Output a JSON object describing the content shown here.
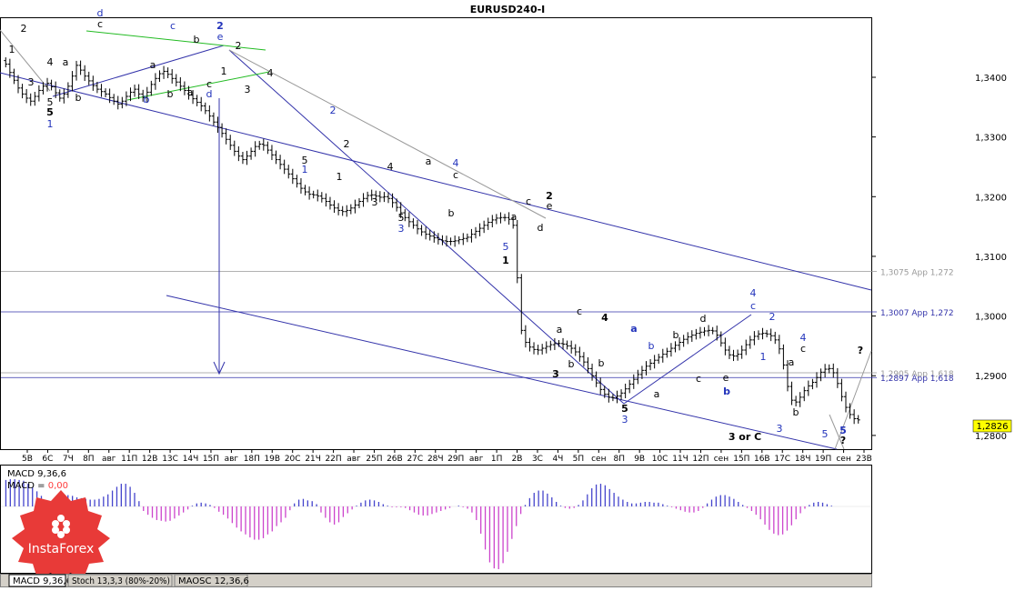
{
  "window": {
    "title": "EURUSD240-I"
  },
  "colors": {
    "candle": "#000000",
    "channel": "#3333aa",
    "green": "#22bb22",
    "gray": "#999999",
    "label_blue": "#2233bb",
    "macd_pos": "#4444cc",
    "macd_neg": "#cc44cc",
    "current_price_bg": "#ffff00"
  },
  "chart_data": {
    "type": "candlestick",
    "symbol": "EURUSD240-I",
    "price_labels": [
      "1,3400",
      "1,3300",
      "1,3200",
      "1,3100",
      "1,3000",
      "1,2900",
      "1,2800"
    ],
    "price_values": [
      1.34,
      1.33,
      1.32,
      1.31,
      1.3,
      1.29,
      1.28
    ],
    "ylim": [
      1.2777,
      1.3499
    ],
    "current_price": "1,2826",
    "x_labels": [
      "5В",
      "6С",
      "7Ч",
      "8П",
      "авг",
      "11П",
      "12В",
      "13С",
      "14Ч",
      "15П",
      "авг",
      "18П",
      "19В",
      "20С",
      "21Ч",
      "22П",
      "авг",
      "25П",
      "26В",
      "27С",
      "28Ч",
      "29П",
      "авг",
      "1П",
      "2В",
      "3С",
      "4Ч",
      "5П",
      "сен",
      "8П",
      "9В",
      "10С",
      "11Ч",
      "12П",
      "сен",
      "15П",
      "16В",
      "17С",
      "18Ч",
      "19П",
      "сен",
      "23В"
    ],
    "levels": [
      {
        "name": "1,3075 App 1,272",
        "value": 1.3075,
        "color": "#999999"
      },
      {
        "name": "1,3007 App 1,272",
        "value": 1.3007,
        "color": "#3333aa"
      },
      {
        "name": "1,2905 App 1,618",
        "value": 1.2905,
        "color": "#999999"
      },
      {
        "name": "1,2897 App 1,618",
        "value": 1.2897,
        "color": "#3333aa"
      }
    ],
    "close": [
      1.3422,
      1.3408,
      1.3395,
      1.3382,
      1.3372,
      1.3365,
      1.336,
      1.3368,
      1.3378,
      1.3385,
      1.339,
      1.3384,
      1.3374,
      1.3365,
      1.3372,
      1.3385,
      1.3402,
      1.342,
      1.3412,
      1.3402,
      1.3394,
      1.3386,
      1.338,
      1.3376,
      1.3372,
      1.3366,
      1.336,
      1.3355,
      1.336,
      1.3368,
      1.3375,
      1.338,
      1.3372,
      1.3366,
      1.3375,
      1.3388,
      1.3398,
      1.3406,
      1.341,
      1.3405,
      1.3398,
      1.3392,
      1.3385,
      1.3378,
      1.337,
      1.3364,
      1.3358,
      1.3352,
      1.3344,
      1.3335,
      1.3325,
      1.3316,
      1.3306,
      1.3296,
      1.3286,
      1.3276,
      1.3268,
      1.3262,
      1.3268,
      1.3276,
      1.3284,
      1.3288,
      1.3286,
      1.3278,
      1.327,
      1.3262,
      1.3254,
      1.3246,
      1.3238,
      1.323,
      1.3222,
      1.3214,
      1.3208,
      1.3204,
      1.3203,
      1.3201,
      1.3197,
      1.3192,
      1.3186,
      1.3181,
      1.3177,
      1.3175,
      1.3177,
      1.3181,
      1.3186,
      1.3192,
      1.3197,
      1.3202,
      1.3203,
      1.3201,
      1.3199,
      1.32,
      1.3197,
      1.319,
      1.3182,
      1.3173,
      1.3165,
      1.3158,
      1.3152,
      1.3146,
      1.3141,
      1.3137,
      1.3134,
      1.3131,
      1.3128,
      1.3126,
      1.3125,
      1.3125,
      1.3126,
      1.3128,
      1.313,
      1.3132,
      1.3137,
      1.3142,
      1.3147,
      1.3152,
      1.3157,
      1.3161,
      1.3164,
      1.3165,
      1.3165,
      1.3162,
      1.3152,
      1.3064,
      1.2976,
      1.2956,
      1.2948,
      1.2944,
      1.2943,
      1.2946,
      1.2949,
      1.2952,
      1.2954,
      1.2954,
      1.2953,
      1.295,
      1.2946,
      1.294,
      1.2932,
      1.2923,
      1.2912,
      1.29,
      1.2888,
      1.2877,
      1.2869,
      1.2864,
      1.2863,
      1.2866,
      1.2871,
      1.2878,
      1.2886,
      1.2894,
      1.2902,
      1.2909,
      1.2916,
      1.2921,
      1.2926,
      1.2931,
      1.2936,
      1.2941,
      1.2946,
      1.2951,
      1.2956,
      1.2961,
      1.2965,
      1.2968,
      1.2971,
      1.2973,
      1.2975,
      1.2976,
      1.2975,
      1.2968,
      1.2955,
      1.2943,
      1.2935,
      1.2933,
      1.2936,
      1.2943,
      1.2952,
      1.296,
      1.2966,
      1.297,
      1.2971,
      1.297,
      1.2967,
      1.296,
      1.2945,
      1.2918,
      1.2882,
      1.2859,
      1.2856,
      1.2864,
      1.2875,
      1.2883,
      1.2889,
      1.2897,
      1.2906,
      1.2911,
      1.2912,
      1.2905,
      1.2887,
      1.2865,
      1.2847,
      1.2835,
      1.2828,
      1.2826
    ]
  },
  "annotations": [
    {
      "t": "2",
      "c": "b",
      "x": 26,
      "y": 35
    },
    {
      "t": "1",
      "c": "b",
      "x": 13,
      "y": 58
    },
    {
      "t": "3",
      "c": "b",
      "x": 34,
      "y": 94
    },
    {
      "t": "4",
      "c": "b",
      "x": 55,
      "y": 72
    },
    {
      "t": "5",
      "c": "b",
      "x": 55,
      "y": 116
    },
    {
      "t": "5",
      "c": "b",
      "x": 55,
      "y": 127,
      "bold": true
    },
    {
      "t": "1",
      "c": "u",
      "x": 55,
      "y": 140
    },
    {
      "t": "a",
      "c": "b",
      "x": 72,
      "y": 72
    },
    {
      "t": "b",
      "c": "b",
      "x": 86,
      "y": 111
    },
    {
      "t": "d",
      "c": "u",
      "x": 110,
      "y": 18
    },
    {
      "t": "c",
      "c": "b",
      "x": 110,
      "y": 30
    },
    {
      "t": "c",
      "c": "u",
      "x": 190,
      "y": 32
    },
    {
      "t": "b",
      "c": "b",
      "x": 216,
      "y": 47
    },
    {
      "t": "2",
      "c": "u",
      "x": 242,
      "y": 32,
      "bold": true
    },
    {
      "t": "e",
      "c": "u",
      "x": 242,
      "y": 44
    },
    {
      "t": "2",
      "c": "b",
      "x": 262,
      "y": 54
    },
    {
      "t": "1",
      "c": "b",
      "x": 246,
      "y": 82
    },
    {
      "t": "a",
      "c": "b",
      "x": 168,
      "y": 75
    },
    {
      "t": "b",
      "c": "u",
      "x": 161,
      "y": 113
    },
    {
      "t": "b",
      "c": "b",
      "x": 187,
      "y": 107
    },
    {
      "t": "a",
      "c": "b",
      "x": 209,
      "y": 105
    },
    {
      "t": "c",
      "c": "b",
      "x": 230,
      "y": 96
    },
    {
      "t": "d",
      "c": "u",
      "x": 230,
      "y": 107
    },
    {
      "t": "3",
      "c": "b",
      "x": 272,
      "y": 102
    },
    {
      "t": "4",
      "c": "b",
      "x": 297,
      "y": 84
    },
    {
      "t": "2",
      "c": "u",
      "x": 366,
      "y": 125
    },
    {
      "t": "5",
      "c": "b",
      "x": 335,
      "y": 180
    },
    {
      "t": "1",
      "c": "u",
      "x": 335,
      "y": 190
    },
    {
      "t": "2",
      "c": "b",
      "x": 381,
      "y": 162
    },
    {
      "t": "1",
      "c": "b",
      "x": 373,
      "y": 198
    },
    {
      "t": "4",
      "c": "b",
      "x": 429,
      "y": 187
    },
    {
      "t": "3",
      "c": "b",
      "x": 412,
      "y": 226
    },
    {
      "t": "5",
      "c": "b",
      "x": 441,
      "y": 243
    },
    {
      "t": "3",
      "c": "u",
      "x": 441,
      "y": 255
    },
    {
      "t": "a",
      "c": "b",
      "x": 471,
      "y": 181
    },
    {
      "t": "4",
      "c": "u",
      "x": 501,
      "y": 183
    },
    {
      "t": "c",
      "c": "b",
      "x": 501,
      "y": 196
    },
    {
      "t": "b",
      "c": "b",
      "x": 496,
      "y": 238
    },
    {
      "t": "c",
      "c": "b",
      "x": 581,
      "y": 225
    },
    {
      "t": "2",
      "c": "b",
      "x": 604,
      "y": 219,
      "bold": true
    },
    {
      "t": "e",
      "c": "b",
      "x": 604,
      "y": 230
    },
    {
      "t": "a",
      "c": "b",
      "x": 565,
      "y": 242
    },
    {
      "t": "d",
      "c": "b",
      "x": 594,
      "y": 254
    },
    {
      "t": "5",
      "c": "u",
      "x": 556,
      "y": 275
    },
    {
      "t": "1",
      "c": "b",
      "x": 556,
      "y": 290,
      "bold": true
    },
    {
      "t": "c",
      "c": "b",
      "x": 637,
      "y": 346
    },
    {
      "t": "4",
      "c": "b",
      "x": 665,
      "y": 353,
      "bold": true
    },
    {
      "t": "a",
      "c": "b",
      "x": 615,
      "y": 366
    },
    {
      "t": "b",
      "c": "b",
      "x": 628,
      "y": 404
    },
    {
      "t": "3",
      "c": "b",
      "x": 611,
      "y": 415,
      "bold": true
    },
    {
      "t": "a",
      "c": "u",
      "x": 697,
      "y": 365,
      "bold": true
    },
    {
      "t": "b",
      "c": "b",
      "x": 661,
      "y": 403
    },
    {
      "t": "b",
      "c": "u",
      "x": 716,
      "y": 384
    },
    {
      "t": "5",
      "c": "b",
      "x": 687,
      "y": 453,
      "bold": true
    },
    {
      "t": "3",
      "c": "u",
      "x": 687,
      "y": 465
    },
    {
      "t": "d",
      "c": "b",
      "x": 773,
      "y": 354
    },
    {
      "t": "b",
      "c": "b",
      "x": 743,
      "y": 372
    },
    {
      "t": "a",
      "c": "b",
      "x": 722,
      "y": 437
    },
    {
      "t": "c",
      "c": "b",
      "x": 768,
      "y": 420
    },
    {
      "t": "e",
      "c": "b",
      "x": 798,
      "y": 419
    },
    {
      "t": "b",
      "c": "u",
      "x": 799,
      "y": 434,
      "bold": true
    },
    {
      "t": "4",
      "c": "u",
      "x": 828,
      "y": 326
    },
    {
      "t": "c",
      "c": "u",
      "x": 828,
      "y": 340
    },
    {
      "t": "2",
      "c": "u",
      "x": 849,
      "y": 352
    },
    {
      "t": "1",
      "c": "u",
      "x": 839,
      "y": 396
    },
    {
      "t": "4",
      "c": "u",
      "x": 883,
      "y": 375
    },
    {
      "t": "c",
      "c": "b",
      "x": 883,
      "y": 387
    },
    {
      "t": "a",
      "c": "b",
      "x": 870,
      "y": 402
    },
    {
      "t": "b",
      "c": "b",
      "x": 875,
      "y": 457
    },
    {
      "t": "3",
      "c": "u",
      "x": 857,
      "y": 475
    },
    {
      "t": "5",
      "c": "u",
      "x": 907,
      "y": 481
    },
    {
      "t": "3 or C",
      "c": "b",
      "x": 819,
      "y": 484,
      "bold": true
    },
    {
      "t": "5",
      "c": "u",
      "x": 927,
      "y": 477,
      "bold": true
    },
    {
      "t": "?",
      "c": "b",
      "x": 927,
      "y": 488,
      "bold": true
    },
    {
      "t": "?",
      "c": "b",
      "x": 946,
      "y": 389,
      "bold": true
    }
  ],
  "indicator": {
    "macd_label": "MACD 9,36,6",
    "macd_value_prefix": "MACD = ",
    "macd_value": "0,00",
    "macd_hist": [
      0.0035,
      0.0036,
      0.0036,
      0.0035,
      0.0034,
      0.003,
      0.0025,
      0.002,
      0.0014,
      0.0008,
      0.0003,
      0.0005,
      0.001,
      0.0013,
      0.0015,
      0.0014,
      0.0012,
      0.0011,
      0.001,
      0.0009,
      0.0009,
      0.001,
      0.0013,
      0.0016,
      0.0021,
      0.0026,
      0.003,
      0.003,
      0.0026,
      0.0018,
      0.0007,
      -0.0006,
      -0.0011,
      -0.0015,
      -0.0018,
      -0.0019,
      -0.002,
      -0.0019,
      -0.0016,
      -0.0012,
      -0.0008,
      -0.0004,
      0.0001,
      0.0004,
      0.0005,
      0.0004,
      0.0002,
      -0.0002,
      -0.0007,
      -0.0011,
      -0.0016,
      -0.0022,
      -0.0028,
      -0.0033,
      -0.0037,
      -0.0041,
      -0.0044,
      -0.0044,
      -0.0042,
      -0.0037,
      -0.0033,
      -0.0026,
      -0.0021,
      -0.0015,
      -0.0005,
      0.0004,
      0.0009,
      0.001,
      0.0008,
      0.0007,
      0.0003,
      -0.0008,
      -0.0015,
      -0.0021,
      -0.0024,
      -0.0021,
      -0.0014,
      -0.0009,
      -0.0004,
      0.0001,
      0.0005,
      0.0008,
      0.0009,
      0.0008,
      0.0006,
      0.0003,
      0.0001,
      -0.0001,
      -0.0001,
      -0.0001,
      -0.0002,
      -0.0005,
      -0.0008,
      -0.0011,
      -0.0012,
      -0.0012,
      -0.001,
      -0.0008,
      -0.0006,
      -0.0004,
      -0.0002,
      0.0,
      0.0001,
      -0.0001,
      -0.0003,
      -0.0008,
      -0.0018,
      -0.0036,
      -0.0057,
      -0.0074,
      -0.0082,
      -0.0083,
      -0.0075,
      -0.006,
      -0.0043,
      -0.0026,
      -0.001,
      0.0002,
      0.0011,
      0.0018,
      0.0021,
      0.0021,
      0.0017,
      0.0012,
      0.0006,
      0.0001,
      -0.0002,
      -0.0003,
      -0.0002,
      0.0002,
      0.0008,
      0.0016,
      0.0024,
      0.0029,
      0.003,
      0.0028,
      0.0023,
      0.0018,
      0.0013,
      0.0009,
      0.0006,
      0.0004,
      0.0004,
      0.0005,
      0.0006,
      0.0006,
      0.0005,
      0.0005,
      0.0003,
      0.0001,
      -0.0001,
      -0.0003,
      -0.0005,
      -0.0007,
      -0.0008,
      -0.0008,
      -0.0006,
      -0.0002,
      0.0004,
      0.0009,
      0.0013,
      0.0015,
      0.0015,
      0.0013,
      0.001,
      0.0006,
      0.0002,
      -0.0002,
      -0.0006,
      -0.0011,
      -0.0017,
      -0.0024,
      -0.0031,
      -0.0036,
      -0.0038,
      -0.0037,
      -0.0032,
      -0.0025,
      -0.0017,
      -0.0009,
      -0.0003,
      0.0002,
      0.0005,
      0.0006,
      0.0005,
      0.0003,
      0.0001,
      0.0,
      0.0,
      0.0,
      0.0,
      0.0,
      0.0
    ]
  },
  "tabs": [
    {
      "label": "MACD 9,36,6",
      "active": true
    },
    {
      "label": "Stoch 13,3,3 (80%-20%)",
      "active": false
    },
    {
      "label": "MAOSC 12,36,6",
      "active": false
    }
  ],
  "logo": {
    "text": "InstaForex"
  }
}
